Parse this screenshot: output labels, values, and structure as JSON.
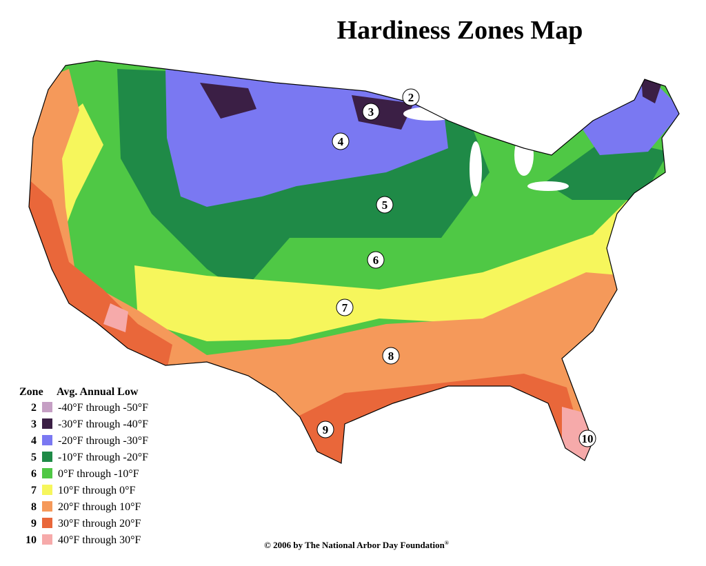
{
  "title": "Hardiness Zones Map",
  "legend": {
    "zone_header": "Zone",
    "range_header": "Avg. Annual Low",
    "items": [
      {
        "zone": "2",
        "range": "-40°F through -50°F",
        "color": "#c59fc4"
      },
      {
        "zone": "3",
        "range": "-30°F through -40°F",
        "color": "#3b1f45"
      },
      {
        "zone": "4",
        "range": "-20°F through -30°F",
        "color": "#7a78f2"
      },
      {
        "zone": "5",
        "range": "-10°F through -20°F",
        "color": "#1f8a47"
      },
      {
        "zone": "6",
        "range": "0°F through -10°F",
        "color": "#4fc845"
      },
      {
        "zone": "7",
        "range": "10°F through 0°F",
        "color": "#f6f65c"
      },
      {
        "zone": "8",
        "range": "20°F through 10°F",
        "color": "#f5995a"
      },
      {
        "zone": "9",
        "range": "30°F through 20°F",
        "color": "#e9673a"
      },
      {
        "zone": "10",
        "range": "40°F through 30°F",
        "color": "#f6aaaa"
      }
    ]
  },
  "map_labels": [
    "2",
    "3",
    "4",
    "5",
    "6",
    "7",
    "8",
    "9",
    "10"
  ],
  "copyright": "© 2006 by The National Arbor Day Foundation",
  "registered": "®"
}
